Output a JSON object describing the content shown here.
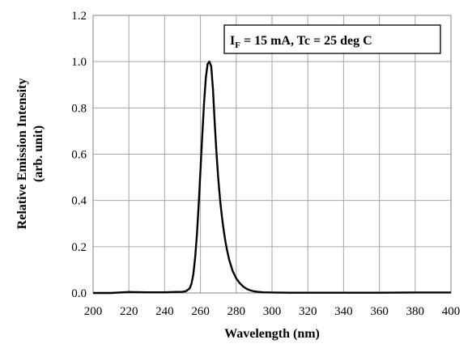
{
  "chart_data": {
    "type": "line",
    "title": "",
    "xlabel": "Wavelength (nm)",
    "ylabel_line1": "Relative Emission Intensity",
    "ylabel_line2": "(arb. unit)",
    "xlim": [
      200,
      400
    ],
    "ylim": [
      0,
      1.2
    ],
    "x_ticks": [
      200,
      220,
      240,
      260,
      280,
      300,
      320,
      340,
      360,
      380,
      400
    ],
    "y_ticks": [
      "0.0",
      "0.2",
      "0.4",
      "0.6",
      "0.8",
      "1.0",
      "1.2"
    ],
    "grid": true,
    "annotation": {
      "symbol": "I",
      "subscript": "F",
      "text": " = 15 mA, Tc = 25 deg C"
    },
    "series": [
      {
        "color": "#000000",
        "x": [
          200,
          210,
          220,
          230,
          240,
          245,
          250,
          252,
          254,
          255,
          256,
          257,
          258,
          259,
          260,
          261,
          262,
          263,
          264,
          265,
          266,
          267,
          268,
          269,
          270,
          271,
          272,
          273,
          274,
          275,
          276,
          278,
          280,
          282,
          284,
          286,
          288,
          290,
          292,
          295,
          300,
          310,
          320,
          340,
          360,
          380,
          400
        ],
        "y": [
          0.0,
          0.0,
          0.004,
          0.003,
          0.003,
          0.004,
          0.005,
          0.008,
          0.02,
          0.04,
          0.08,
          0.15,
          0.25,
          0.38,
          0.53,
          0.68,
          0.82,
          0.93,
          0.99,
          1.0,
          0.98,
          0.88,
          0.73,
          0.6,
          0.49,
          0.4,
          0.33,
          0.27,
          0.22,
          0.18,
          0.145,
          0.095,
          0.063,
          0.042,
          0.027,
          0.017,
          0.011,
          0.007,
          0.005,
          0.003,
          0.002,
          0.001,
          0.001,
          0.001,
          0.001,
          0.002,
          0.002
        ]
      }
    ]
  }
}
